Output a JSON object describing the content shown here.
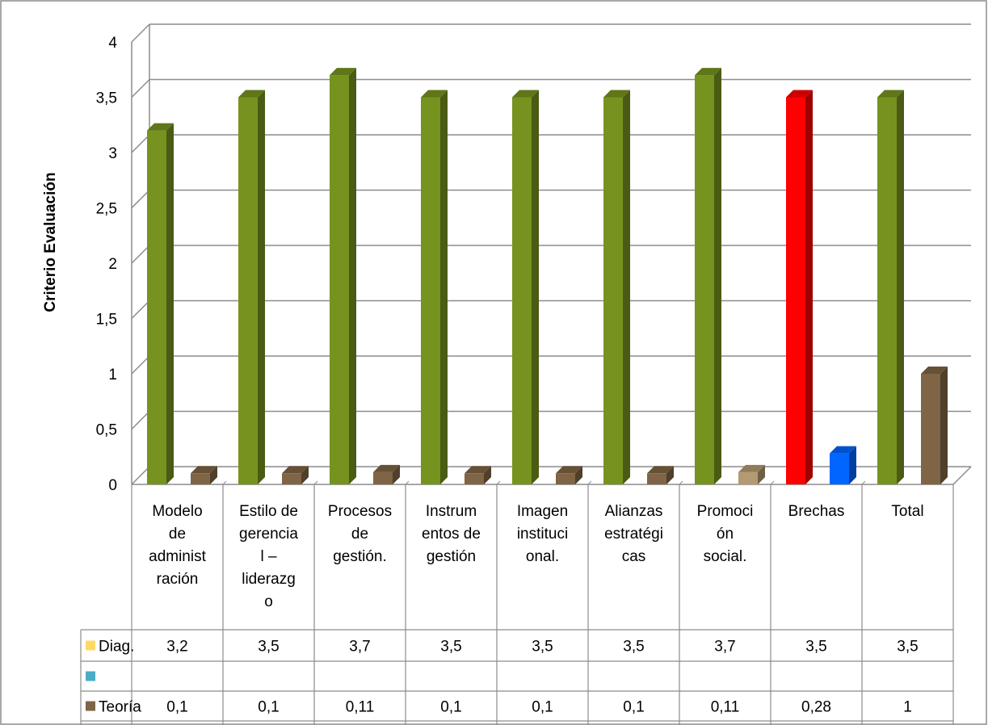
{
  "chart_data": {
    "type": "bar",
    "title": "",
    "xlabel": "",
    "ylabel": "Criterio Evaluación",
    "ylim": [
      0,
      4
    ],
    "yticks": [
      "0",
      "0,5",
      "1",
      "1,5",
      "2",
      "2,5",
      "3",
      "3,5",
      "4"
    ],
    "categories": [
      "Modelo de administración",
      "Estilo de gerencial – liderazgo",
      "Procesos de gestión.",
      "Instrumentos de gestión",
      "Imagen institucional.",
      "Alianzas estratégicas",
      "Promoción social.",
      "Brechas",
      "Total"
    ],
    "category_label_lines": [
      [
        "Modelo",
        "de",
        "administ",
        "ración"
      ],
      [
        "Estilo de",
        "gerencia",
        "l –",
        "liderazg",
        "o"
      ],
      [
        "Procesos",
        "de",
        "gestión."
      ],
      [
        "Instrum",
        "entos de",
        "gestión"
      ],
      [
        "Imagen",
        "instituci",
        "onal."
      ],
      [
        "Alianzas",
        "estratégi",
        "cas"
      ],
      [
        "Promoci",
        "ón",
        "social."
      ],
      [
        "Brechas"
      ],
      [
        "Total"
      ]
    ],
    "series": [
      {
        "name": "Diag.",
        "legend_color": "#ffd966",
        "values": [
          3.2,
          3.5,
          3.7,
          3.5,
          3.5,
          3.5,
          3.7,
          3.5,
          3.5
        ],
        "value_labels": [
          "3,2",
          "3,5",
          "3,7",
          "3,5",
          "3,5",
          "3,5",
          "3,7",
          "3,5",
          "3,5"
        ],
        "colors": [
          "#77931f",
          "#77931f",
          "#77931f",
          "#77931f",
          "#77931f",
          "#77931f",
          "#77931f",
          "#ff0000",
          "#77931f"
        ]
      },
      {
        "name": "",
        "legend_color": "#4bacc6",
        "values": [
          null,
          null,
          null,
          null,
          null,
          null,
          null,
          null,
          null
        ],
        "value_labels": [
          "",
          "",
          "",
          "",
          "",
          "",
          "",
          "",
          ""
        ],
        "colors": []
      },
      {
        "name": "Teoría",
        "legend_color": "#7f6545",
        "values": [
          0.1,
          0.1,
          0.11,
          0.1,
          0.1,
          0.1,
          0.11,
          0.28,
          1
        ],
        "value_labels": [
          "0,1",
          "0,1",
          "0,11",
          "0,1",
          "0,1",
          "0,1",
          "0,11",
          "0,28",
          "1"
        ],
        "colors": [
          "#7f6545",
          "#7f6545",
          "#7f6545",
          "#7f6545",
          "#7f6545",
          "#7f6545",
          "#b49a72",
          "#0066ff",
          "#7f6545"
        ]
      }
    ],
    "grid": true,
    "legend": "data-table"
  }
}
